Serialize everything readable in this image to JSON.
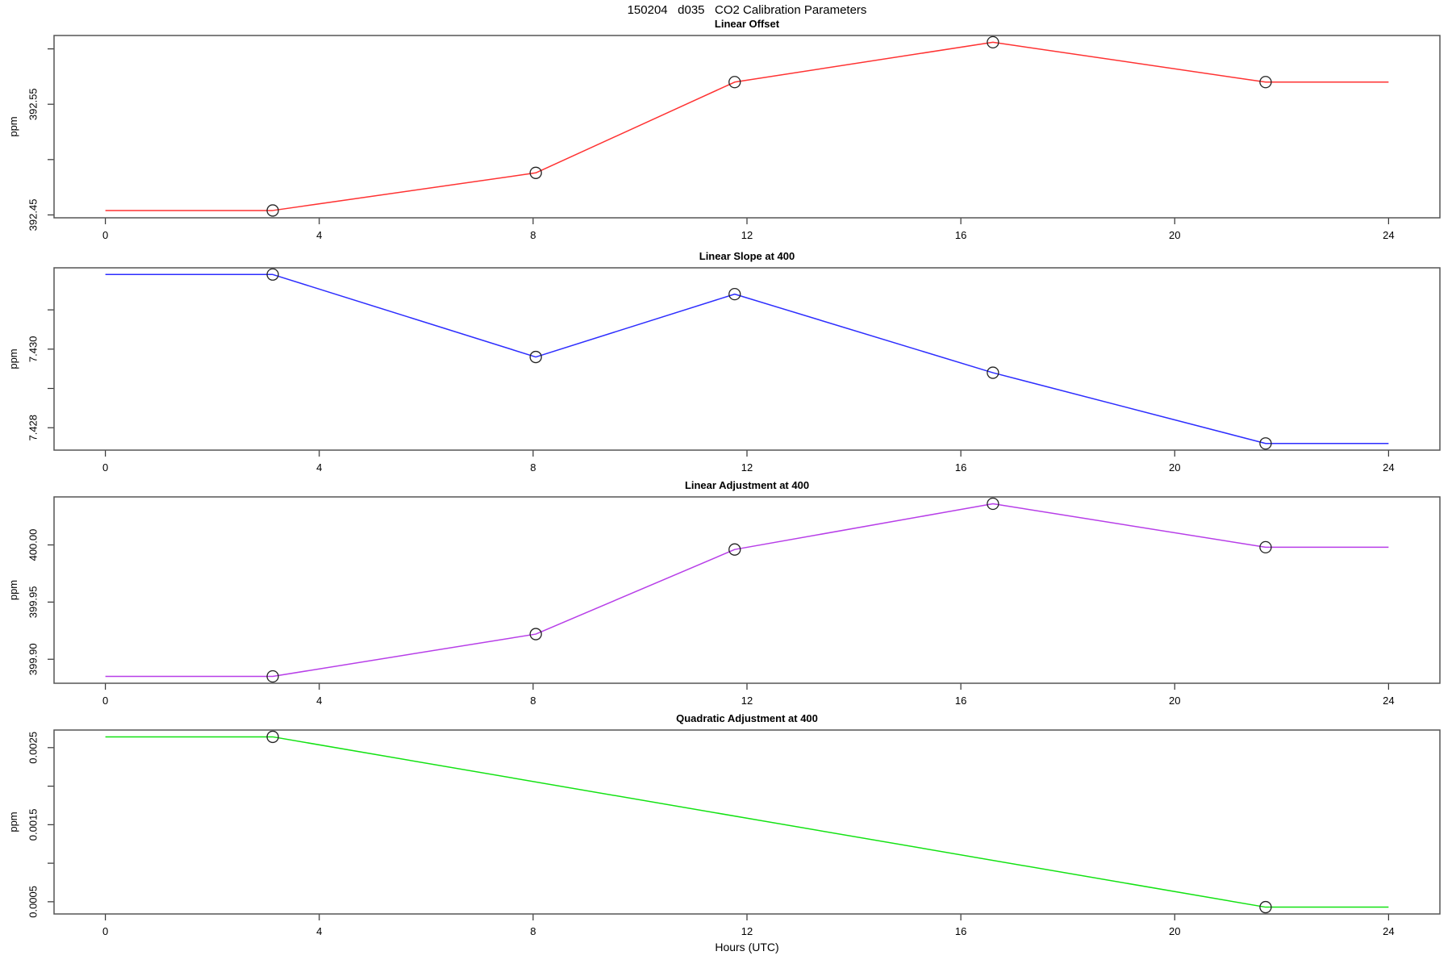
{
  "page_title": "150204   d035   CO2 Calibration Parameters",
  "x_axis": {
    "label": "Hours (UTC)",
    "ticks": [
      0,
      4,
      8,
      12,
      16,
      20,
      24
    ],
    "xlim": [
      -0.96,
      24.96
    ]
  },
  "marker_style": "open-circle",
  "chart_data": [
    {
      "type": "line",
      "title": "Linear Offset",
      "ylabel": "ppm",
      "color": "#ff3232",
      "x": [
        0,
        3.13,
        8.05,
        11.77,
        16.6,
        21.7,
        24
      ],
      "values": [
        392.454,
        392.454,
        392.488,
        392.57,
        392.606,
        392.57,
        392.57
      ],
      "marker_indices": [
        1,
        2,
        3,
        4,
        5
      ],
      "ylim": [
        392.4474,
        392.6121
      ],
      "yticks": [
        392.45,
        392.5,
        392.55,
        392.6
      ],
      "ytick_labels": [
        "392.45",
        "",
        "392.55",
        ""
      ]
    },
    {
      "type": "line",
      "title": "Linear Slope at 400",
      "ylabel": "ppm",
      "color": "#2d2dff",
      "x": [
        0,
        3.13,
        8.05,
        11.77,
        16.6,
        21.7,
        24
      ],
      "values": [
        7.4319,
        7.4319,
        7.4298,
        7.4314,
        7.4294,
        7.4276,
        7.4276
      ],
      "marker_indices": [
        1,
        2,
        3,
        4,
        5
      ],
      "ylim": [
        7.42743,
        7.43207
      ],
      "yticks": [
        7.428,
        7.429,
        7.43,
        7.431
      ],
      "ytick_labels": [
        "7.428",
        "",
        "7.430",
        ""
      ]
    },
    {
      "type": "line",
      "title": "Linear Adjustment at 400",
      "ylabel": "ppm",
      "color": "#b73ee8",
      "x": [
        0,
        3.13,
        8.05,
        11.77,
        16.6,
        21.7,
        24
      ],
      "values": [
        399.885,
        399.885,
        399.922,
        399.996,
        400.036,
        399.998,
        399.998
      ],
      "marker_indices": [
        1,
        2,
        3,
        4,
        5
      ],
      "ylim": [
        399.879,
        400.042
      ],
      "yticks": [
        399.9,
        399.95,
        400.0
      ],
      "ytick_labels": [
        "399.90",
        "399.95",
        "400.00"
      ]
    },
    {
      "type": "line",
      "title": "Quadratic Adjustment at 400",
      "ylabel": "ppm",
      "color": "#12e212",
      "x": [
        0,
        3.13,
        21.7,
        24
      ],
      "values": [
        0.00264,
        0.00264,
        0.00043,
        0.00043
      ],
      "marker_indices": [
        1,
        2
      ],
      "ylim": [
        0.0003416,
        0.0027284
      ],
      "yticks": [
        0.0005,
        0.001,
        0.0015,
        0.002,
        0.0025
      ],
      "ytick_labels": [
        "0.0005",
        "",
        "0.0015",
        "",
        "0.0025"
      ]
    }
  ]
}
